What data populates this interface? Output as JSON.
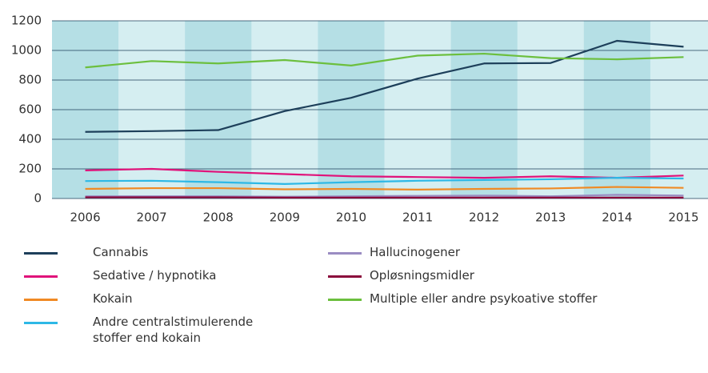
{
  "chart_data": {
    "type": "line",
    "categories": [
      "2006",
      "2007",
      "2008",
      "2009",
      "2010",
      "2011",
      "2012",
      "2013",
      "2014",
      "2015"
    ],
    "ylim": [
      0,
      1200
    ],
    "yticks": [
      0,
      200,
      400,
      600,
      800,
      1000,
      1200
    ],
    "grid": true,
    "band_colors": [
      "#b5dfe5",
      "#d5eef1"
    ],
    "series": [
      {
        "name": "Cannabis",
        "color": "#1d3f5a",
        "values": [
          450,
          455,
          462,
          590,
          680,
          810,
          912,
          915,
          1065,
          1025
        ]
      },
      {
        "name": "Sedative / hypnotika",
        "color": "#e0137a",
        "values": [
          190,
          200,
          180,
          165,
          150,
          145,
          140,
          150,
          140,
          155
        ]
      },
      {
        "name": "Kokain",
        "color": "#f08a24",
        "values": [
          65,
          70,
          70,
          62,
          65,
          60,
          65,
          68,
          78,
          72
        ]
      },
      {
        "name": "Andre centralstimulerende stoffer end kokain",
        "color": "#2db8e6",
        "values": [
          118,
          120,
          110,
          98,
          110,
          120,
          125,
          130,
          140,
          135
        ]
      },
      {
        "name": "Hallucinogener",
        "color": "#9a8cc2",
        "values": [
          15,
          15,
          15,
          12,
          15,
          18,
          20,
          15,
          25,
          20
        ]
      },
      {
        "name": "Opløsningsmidler",
        "color": "#8b0a3c",
        "values": [
          8,
          8,
          8,
          6,
          6,
          6,
          6,
          6,
          6,
          6
        ]
      },
      {
        "name": "Multiple eller andre psykoative stoffer",
        "color": "#6cbf3e",
        "values": [
          885,
          928,
          912,
          935,
          898,
          965,
          978,
          948,
          940,
          955
        ]
      }
    ]
  }
}
